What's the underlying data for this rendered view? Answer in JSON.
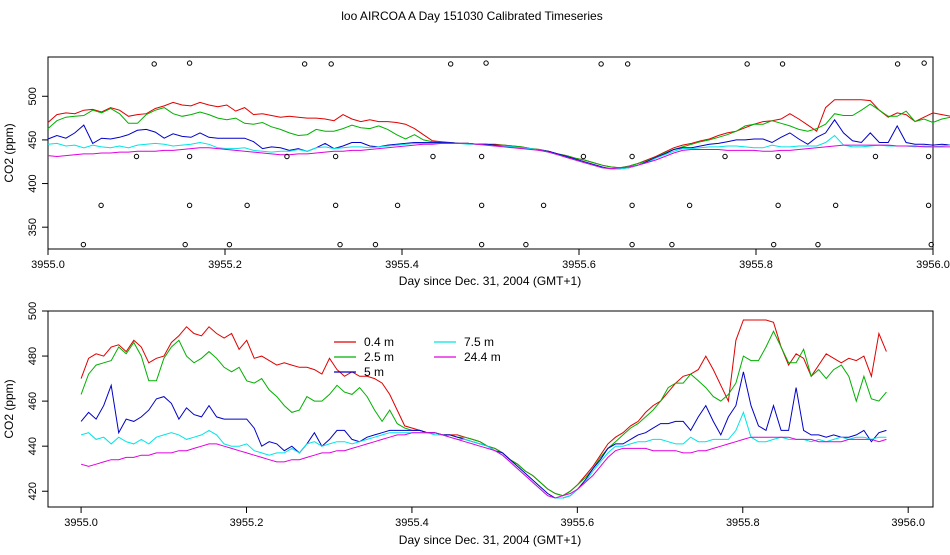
{
  "title": "loo AIRCOA A  Day 151030  Calibrated Timeseries",
  "colors": {
    "0.4 m": "#e00000",
    "2.5 m": "#00b000",
    "5 m": "#0000c8",
    "7.5 m": "#00e5e5",
    "24.4 m": "#e000e0"
  },
  "chart_data": [
    {
      "type": "line",
      "xlabel": "Day since Dec. 31, 2004 (GMT+1)",
      "ylabel": "CO2 (ppm)",
      "xlim": [
        3955.0,
        3956.0
      ],
      "ylim": [
        325,
        545
      ],
      "xticks": [
        "3955.0",
        "3955.2",
        "3955.4",
        "3955.6",
        "3955.8",
        "3956.0"
      ],
      "yticks": [
        "350",
        "400",
        "450",
        "500"
      ],
      "legend": "none",
      "x_start": 3955.0,
      "x_step": 0.0101,
      "series": [
        {
          "name": "0.4 m",
          "color": "#e00000",
          "values": [
            470,
            479,
            481,
            480,
            484,
            485,
            482,
            487,
            484,
            477,
            479,
            480,
            486,
            489,
            493,
            490,
            489,
            493,
            490,
            488,
            490,
            483,
            487,
            479,
            480,
            478,
            476,
            477,
            476,
            475,
            475,
            474,
            472,
            479,
            474,
            471,
            473,
            471,
            471,
            470,
            468,
            463,
            456,
            449,
            448,
            447,
            446,
            446,
            445,
            445,
            445,
            444,
            443,
            442,
            440,
            439,
            437,
            434,
            432,
            429,
            427,
            424,
            421,
            419,
            418,
            420,
            423,
            427,
            431,
            436,
            441,
            444,
            446,
            449,
            451,
            455,
            458,
            460,
            464,
            468,
            471,
            472,
            474,
            480,
            474,
            467,
            460,
            487,
            496,
            496,
            496,
            496,
            495,
            484,
            476,
            481,
            479,
            471,
            476,
            481,
            479,
            477,
            479,
            478,
            480,
            471,
            490,
            482
          ]
        },
        {
          "name": "2.5 m",
          "color": "#00b000",
          "values": [
            463,
            472,
            476,
            477,
            478,
            484,
            481,
            486,
            480,
            469,
            469,
            479,
            484,
            487,
            480,
            477,
            479,
            482,
            479,
            475,
            473,
            475,
            469,
            468,
            470,
            465,
            462,
            458,
            455,
            456,
            462,
            460,
            460,
            463,
            467,
            464,
            463,
            466,
            462,
            456,
            451,
            456,
            450,
            448,
            447,
            447,
            446,
            446,
            445,
            445,
            444,
            444,
            443,
            442,
            440,
            439,
            437,
            434,
            432,
            429,
            427,
            424,
            421,
            419,
            418,
            420,
            423,
            426,
            430,
            435,
            439,
            442,
            445,
            448,
            450,
            453,
            456,
            460,
            466,
            468,
            468,
            472,
            469,
            466,
            462,
            460,
            463,
            468,
            480,
            478,
            478,
            484,
            491,
            484,
            477,
            477,
            483,
            471,
            474,
            470,
            474,
            476,
            471,
            460,
            471,
            461,
            460,
            464
          ]
        },
        {
          "name": "5 m",
          "color": "#0000c8",
          "values": [
            451,
            455,
            452,
            458,
            467,
            446,
            452,
            451,
            453,
            456,
            461,
            462,
            459,
            452,
            457,
            454,
            453,
            458,
            453,
            452,
            452,
            452,
            452,
            448,
            440,
            442,
            441,
            438,
            440,
            437,
            441,
            446,
            440,
            443,
            447,
            447,
            443,
            442,
            444,
            445,
            446,
            447,
            447,
            447,
            447,
            447,
            446,
            446,
            445,
            445,
            444,
            443,
            442,
            441,
            440,
            438,
            437,
            434,
            431,
            428,
            425,
            422,
            419,
            417,
            417,
            418,
            421,
            425,
            430,
            434,
            439,
            441,
            441,
            443,
            445,
            446,
            448,
            450,
            450,
            451,
            451,
            447,
            453,
            458,
            451,
            445,
            453,
            458,
            473,
            458,
            449,
            447,
            458,
            447,
            447,
            466,
            447,
            445,
            445,
            444,
            445,
            444,
            444,
            445,
            447,
            442,
            446,
            447
          ]
        },
        {
          "name": "7.5 m",
          "color": "#00e5e5",
          "values": [
            445,
            446,
            443,
            444,
            441,
            444,
            442,
            441,
            443,
            441,
            444,
            445,
            446,
            445,
            443,
            444,
            445,
            447,
            445,
            441,
            440,
            440,
            441,
            438,
            437,
            436,
            437,
            437,
            439,
            437,
            441,
            442,
            440,
            441,
            442,
            442,
            441,
            442,
            443,
            444,
            445,
            446,
            446,
            446,
            446,
            446,
            446,
            445,
            445,
            444,
            443,
            443,
            442,
            441,
            440,
            438,
            436,
            433,
            430,
            427,
            424,
            421,
            418,
            417,
            417,
            418,
            421,
            424,
            429,
            433,
            437,
            440,
            440,
            441,
            442,
            442,
            443,
            443,
            442,
            441,
            441,
            444,
            442,
            442,
            443,
            443,
            443,
            447,
            455,
            444,
            442,
            442,
            443,
            444,
            443,
            443,
            443,
            442,
            443,
            442,
            443,
            444,
            443,
            444,
            444,
            443,
            444,
            444
          ]
        },
        {
          "name": "24.4 m",
          "color": "#e000e0",
          "values": [
            432,
            431,
            432,
            433,
            434,
            434,
            435,
            435,
            436,
            436,
            437,
            437,
            437,
            438,
            438,
            439,
            440,
            441,
            441,
            440,
            439,
            438,
            437,
            436,
            435,
            434,
            433,
            433,
            434,
            434,
            435,
            436,
            437,
            437,
            438,
            438,
            439,
            440,
            441,
            442,
            443,
            444,
            445,
            445,
            446,
            446,
            446,
            446,
            445,
            444,
            443,
            442,
            441,
            440,
            439,
            438,
            436,
            433,
            430,
            427,
            424,
            421,
            418,
            417,
            418,
            419,
            421,
            424,
            427,
            431,
            435,
            438,
            439,
            439,
            439,
            439,
            438,
            438,
            438,
            438,
            437,
            437,
            438,
            438,
            439,
            440,
            441,
            442,
            443,
            444,
            444,
            444,
            444,
            444,
            444,
            443,
            443,
            443,
            442,
            442,
            442,
            442,
            443,
            443,
            443,
            443,
            442,
            443
          ]
        }
      ],
      "points": [
        [
          3955.04,
          330
        ],
        [
          3955.06,
          375
        ],
        [
          3955.1,
          431
        ],
        [
          3955.12,
          537
        ],
        [
          3955.155,
          330
        ],
        [
          3955.16,
          375
        ],
        [
          3955.16,
          431
        ],
        [
          3955.16,
          538
        ],
        [
          3955.205,
          330
        ],
        [
          3955.225,
          375
        ],
        [
          3955.27,
          431
        ],
        [
          3955.29,
          537
        ],
        [
          3955.32,
          537
        ],
        [
          3955.325,
          375
        ],
        [
          3955.325,
          431
        ],
        [
          3955.33,
          330
        ],
        [
          3955.37,
          330
        ],
        [
          3955.395,
          375
        ],
        [
          3955.435,
          431
        ],
        [
          3955.455,
          537
        ],
        [
          3955.49,
          330
        ],
        [
          3955.49,
          375
        ],
        [
          3955.49,
          431
        ],
        [
          3955.495,
          538
        ],
        [
          3955.54,
          330
        ],
        [
          3955.56,
          375
        ],
        [
          3955.605,
          431
        ],
        [
          3955.625,
          537
        ],
        [
          3955.655,
          537
        ],
        [
          3955.66,
          375
        ],
        [
          3955.66,
          431
        ],
        [
          3955.66,
          330
        ],
        [
          3955.705,
          330
        ],
        [
          3955.725,
          375
        ],
        [
          3955.765,
          431
        ],
        [
          3955.79,
          537
        ],
        [
          3955.82,
          330
        ],
        [
          3955.825,
          375
        ],
        [
          3955.825,
          431
        ],
        [
          3955.83,
          537
        ],
        [
          3955.87,
          330
        ],
        [
          3955.89,
          375
        ],
        [
          3955.935,
          431
        ],
        [
          3955.96,
          537
        ],
        [
          3955.99,
          538
        ],
        [
          3955.995,
          431
        ],
        [
          3955.995,
          375
        ],
        [
          3955.998,
          330
        ]
      ]
    },
    {
      "type": "line",
      "xlabel": "Day since Dec. 31, 2004 (GMT+1)",
      "ylabel": "CO2 (ppm)",
      "xlim": [
        3954.96,
        3956.03
      ],
      "ylim": [
        413,
        500
      ],
      "xticks": [
        "3955.0",
        "3955.2",
        "3955.4",
        "3955.6",
        "3955.8",
        "3956.0"
      ],
      "yticks": [
        "420",
        "440",
        "460",
        "480",
        "500"
      ],
      "legend": "top-left",
      "legend_entries": [
        "0.4 m",
        "2.5 m",
        "5 m",
        "7.5 m",
        "24.4 m"
      ],
      "x_start": 3955.0,
      "x_step": 0.0091,
      "series_ref": "same as panel 1"
    }
  ]
}
